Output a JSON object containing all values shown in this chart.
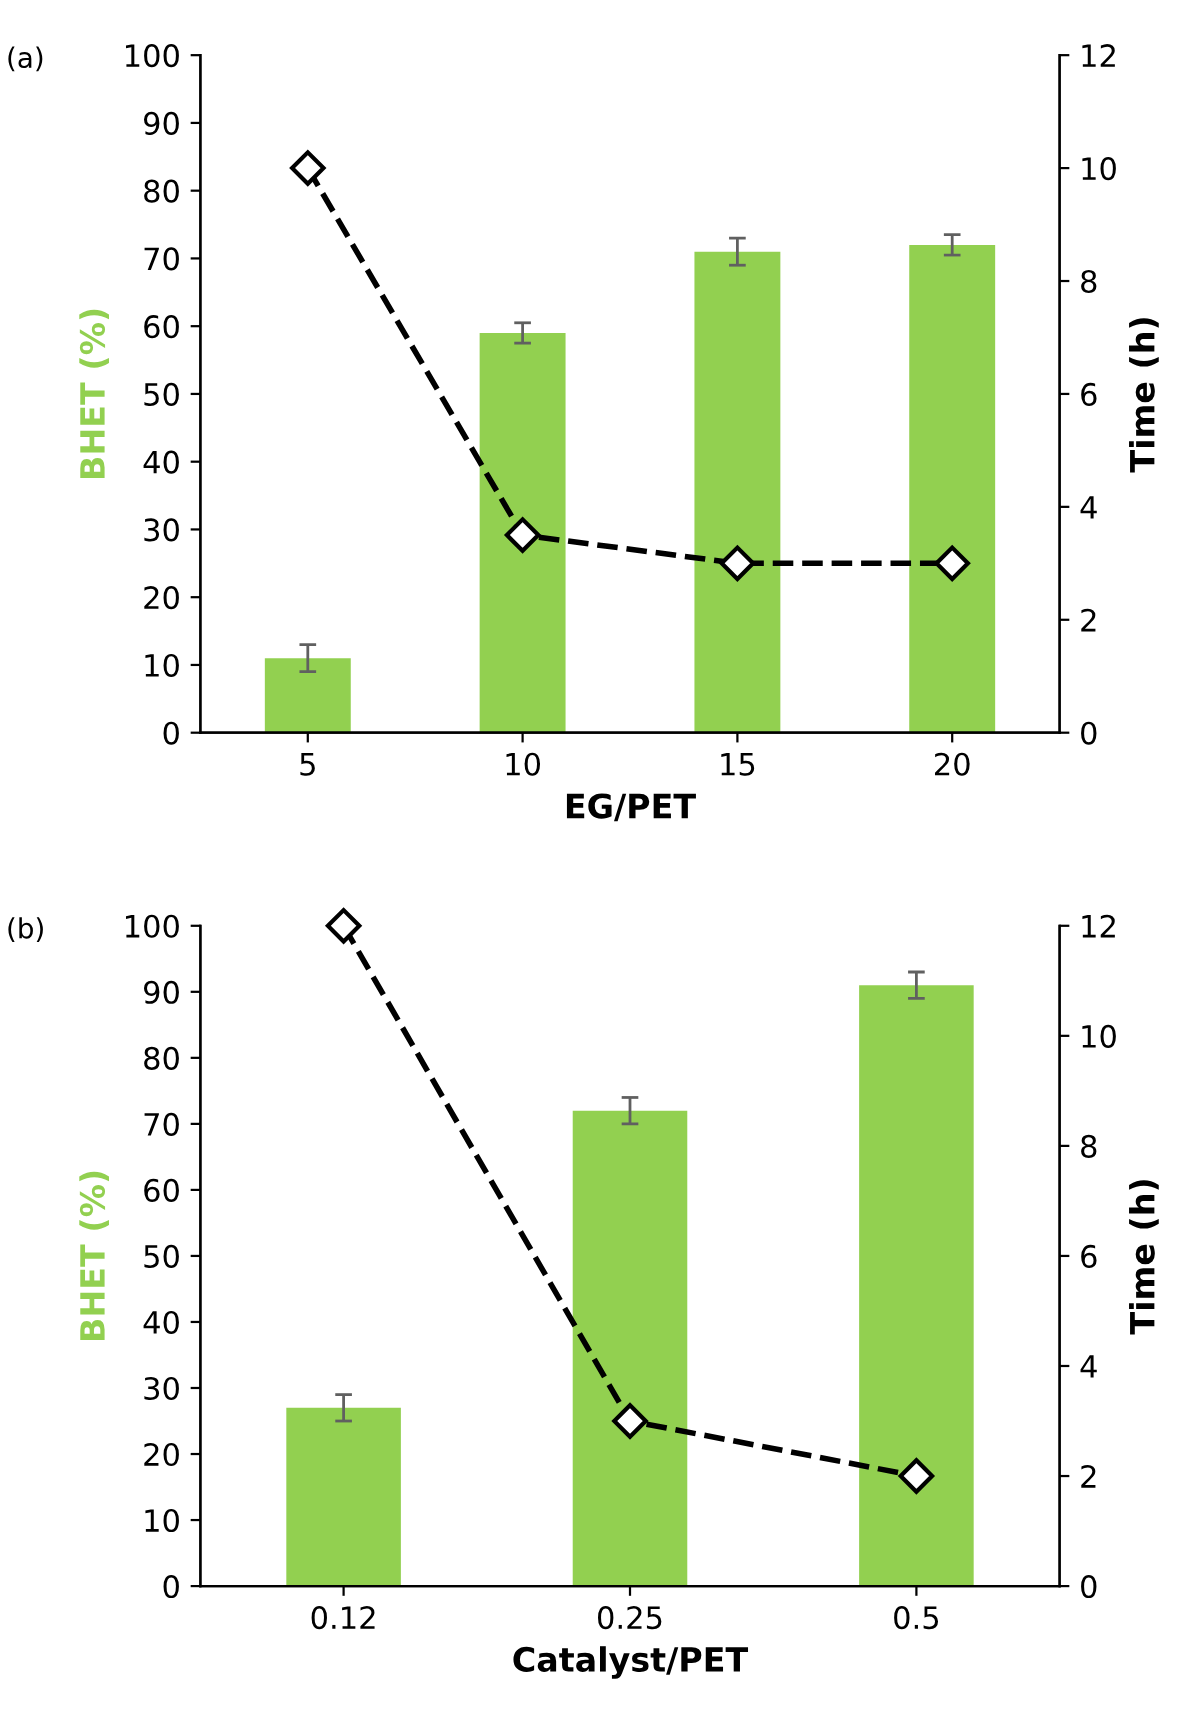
{
  "chart_data": [
    {
      "type": "bar",
      "categories": [
        "5",
        "10",
        "15",
        "20"
      ],
      "xlabel": "EG/PET",
      "ylabel": "BHET (%)",
      "y2label": "Time (h)",
      "annotations": [
        "(a)"
      ],
      "ylim": [
        0,
        100
      ],
      "yticks": [
        0,
        10,
        20,
        30,
        40,
        50,
        60,
        70,
        80,
        90,
        100
      ],
      "y2lim": [
        0,
        12
      ],
      "y2ticks": [
        0,
        2,
        4,
        6,
        8,
        10,
        12
      ],
      "grid": false,
      "legend": false,
      "series": [
        {
          "color": "#92d050",
          "values": [
            11,
            59,
            71,
            72
          ],
          "errors": [
            2,
            1.5,
            2,
            1.5
          ]
        },
        {
          "type": "line",
          "axis": "y2",
          "color": "#000000",
          "values": [
            10,
            3.5,
            3,
            3
          ],
          "marker": "diamond",
          "line_style": "dashed"
        }
      ]
    },
    {
      "type": "bar",
      "categories": [
        "0.12",
        "0.25",
        "0.5"
      ],
      "xlabel": "Catalyst/PET",
      "ylabel": "BHET (%)",
      "y2label": "Time (h)",
      "annotations": [
        "(b)"
      ],
      "ylim": [
        0,
        100
      ],
      "yticks": [
        0,
        10,
        20,
        30,
        40,
        50,
        60,
        70,
        80,
        90,
        100
      ],
      "y2lim": [
        0,
        12
      ],
      "y2ticks": [
        0,
        2,
        4,
        6,
        8,
        10,
        12
      ],
      "grid": false,
      "legend": false,
      "series": [
        {
          "color": "#92d050",
          "values": [
            27,
            72,
            91
          ],
          "errors": [
            2,
            2,
            2
          ]
        },
        {
          "type": "line",
          "axis": "y2",
          "color": "#000000",
          "values": [
            12,
            3,
            2
          ],
          "marker": "diamond",
          "line_style": "dashed"
        }
      ]
    }
  ]
}
